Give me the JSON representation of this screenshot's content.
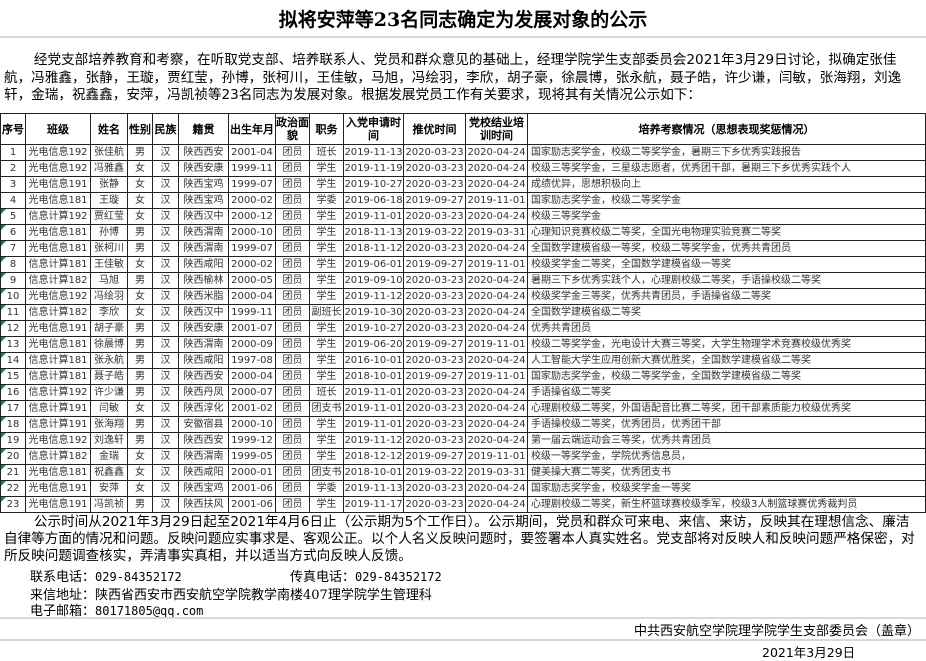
{
  "title": "拟将安萍等23名同志确定为发展对象的公示",
  "intro": "经党支部培养教育和考察，在听取党支部、培养联系人、党员和群众意见的基础上，经理学院学生支部委员会2021年3月29日讨论，拟确定张佳航，冯雅鑫，张静，王璇，贾红莹，孙博，张柯川，王佳敏，马旭，冯绘羽，李欣，胡子豪，徐晨博，张永航，聂子皓，许少谦，闫敏，张海翔，刘逸轩，金瑞，祝鑫鑫，安萍，冯凯祯等23名同志为发展对象。根据发展党员工作有关要求，现将其有关情况公示如下：",
  "table": {
    "headers": [
      "序号",
      "班级",
      "姓名",
      "性别",
      "民族",
      "籍贯",
      "出生年月",
      "政治面貌",
      "职务",
      "入党申请时间",
      "推优时间",
      "党校结业培训时间",
      "培养考察情况（思想表现奖惩情况）"
    ],
    "rows": [
      [
        "1",
        "光电信息192",
        "张佳航",
        "男",
        "汉",
        "陕西西安",
        "2001-04",
        "团员",
        "班长",
        "2019-11-13",
        "2020-03-23",
        "2020-04-24",
        "国家励志奖学金，校级二等奖学金，暑期三下乡优秀实践报告"
      ],
      [
        "2",
        "光电信息192",
        "冯雅鑫",
        "女",
        "汉",
        "陕西安康",
        "1999-11",
        "团员",
        "学生",
        "2019-11-19",
        "2020-03-23",
        "2020-04-24",
        "校级三等奖学金，三星级志愿者，优秀团干部，暑期三下乡优秀实践个人"
      ],
      [
        "3",
        "光电信息191",
        "张静",
        "女",
        "汉",
        "陕西宝鸡",
        "1999-07",
        "团员",
        "学生",
        "2019-10-27",
        "2020-03-23",
        "2020-04-24",
        "成绩优异，思想积极向上"
      ],
      [
        "4",
        "光电信息181",
        "王璇",
        "女",
        "汉",
        "陕西宝鸡",
        "2000-02",
        "团员",
        "学委",
        "2019-06-18",
        "2019-09-27",
        "2019-11-01",
        "国家励志奖学金，校级二等奖学金"
      ],
      [
        "5",
        "信息计算192",
        "贾红莹",
        "女",
        "汉",
        "陕西汉中",
        "2000-12",
        "团员",
        "学生",
        "2019-11-01",
        "2020-03-23",
        "2020-04-24",
        "校级三等奖学金"
      ],
      [
        "6",
        "光电信息181",
        "孙博",
        "男",
        "汉",
        "陕西渭南",
        "2000-10",
        "团员",
        "学生",
        "2018-11-13",
        "2019-03-22",
        "2019-03-31",
        "心理知识竞赛校级二等奖，全国光电物理实验竞赛二等奖"
      ],
      [
        "7",
        "光电信息181",
        "张柯川",
        "男",
        "汉",
        "陕西渭南",
        "1999-07",
        "团员",
        "学生",
        "2018-11-12",
        "2020-03-23",
        "2020-04-24",
        "全国数学建模省级一等奖，校级二等奖学金，优秀共青团员"
      ],
      [
        "8",
        "信息计算181",
        "王佳敏",
        "女",
        "汉",
        "陕西咸阳",
        "2000-02",
        "团员",
        "学生",
        "2019-06-01",
        "2019-09-27",
        "2019-11-01",
        "校级奖学金二等奖，全国数学建模省级一等奖"
      ],
      [
        "9",
        "信息计算182",
        "马旭",
        "男",
        "汉",
        "陕西榆林",
        "2000-05",
        "团员",
        "学生",
        "2019-09-10",
        "2020-03-23",
        "2020-04-24",
        "暑期三下乡优秀实践个人，心理剧校级二等奖，手语操校级二等奖"
      ],
      [
        "10",
        "光电信息192",
        "冯绘羽",
        "女",
        "汉",
        "陕西米脂",
        "2000-04",
        "团员",
        "学生",
        "2019-11-12",
        "2020-03-23",
        "2020-04-24",
        "校级奖学金三等奖，优秀共青团员，手语操省级二等奖"
      ],
      [
        "11",
        "信息计算182",
        "李欣",
        "女",
        "汉",
        "陕西汉中",
        "1999-11",
        "团员",
        "副班长",
        "2019-10-30",
        "2020-03-23",
        "2020-04-24",
        "全国数学建模省级二等奖"
      ],
      [
        "12",
        "光电信息191",
        "胡子豪",
        "男",
        "汉",
        "陕西安康",
        "2001-07",
        "团员",
        "学生",
        "2019-10-27",
        "2020-03-23",
        "2020-04-24",
        "优秀共青团员"
      ],
      [
        "13",
        "光电信息181",
        "徐晨博",
        "男",
        "汉",
        "陕西渭南",
        "2000-09",
        "团员",
        "学生",
        "2019-06-20",
        "2019-09-27",
        "2019-11-01",
        "校级二等奖学金，光电设计大赛三等奖，大学生物理学术竞赛校级优秀奖"
      ],
      [
        "14",
        "信息计算181",
        "张永航",
        "男",
        "汉",
        "陕西咸阳",
        "1997-08",
        "团员",
        "学生",
        "2016-10-01",
        "2020-03-23",
        "2020-04-24",
        "人工智能大学生应用创新大赛优胜奖，全国数学建模省级二等奖"
      ],
      [
        "15",
        "信息计算181",
        "聂子皓",
        "男",
        "汉",
        "陕西西安",
        "2000-04",
        "团员",
        "学生",
        "2018-10-01",
        "2019-09-27",
        "2019-11-01",
        "国家励志奖学金，校级二等奖学金，全国数学建模省级二等奖"
      ],
      [
        "16",
        "信息计算192",
        "许少谦",
        "男",
        "汉",
        "陕西丹凤",
        "2000-07",
        "团员",
        "班长",
        "2019-11-01",
        "2020-03-23",
        "2020-04-24",
        "手语操省级二等奖"
      ],
      [
        "17",
        "信息计算191",
        "闫敏",
        "女",
        "汉",
        "陕西淳化",
        "2001-02",
        "团员",
        "团支书",
        "2019-11-01",
        "2020-03-23",
        "2020-04-24",
        "心理剧校级二等奖，外国语配音比赛二等奖，团干部素质能力校级优秀奖"
      ],
      [
        "18",
        "信息计算191",
        "张海翔",
        "男",
        "汉",
        "安徽宿县",
        "2000-10",
        "团员",
        "学生",
        "2019-11-01",
        "2020-03-23",
        "2020-04-24",
        "手语操校级二等奖，优秀团员，优秀团干部"
      ],
      [
        "19",
        "光电信息192",
        "刘逸轩",
        "男",
        "汉",
        "陕西西安",
        "1999-12",
        "团员",
        "学生",
        "2019-11-12",
        "2020-03-23",
        "2020-04-24",
        "第一届云端运动会三等奖，优秀共青团员"
      ],
      [
        "20",
        "信息计算182",
        "金瑞",
        "女",
        "汉",
        "陕西渭南",
        "1999-05",
        "团员",
        "学生",
        "2018-12-12",
        "2019-09-27",
        "2019-11-01",
        "校级一等奖学金，学院优秀信息员，"
      ],
      [
        "21",
        "光电信息181",
        "祝鑫鑫",
        "女",
        "汉",
        "陕西咸阳",
        "2000-01",
        "团员",
        "团支书",
        "2018-10-01",
        "2019-03-22",
        "2019-03-31",
        "健美操大赛二等奖，优秀团支书"
      ],
      [
        "22",
        "光电信息191",
        "安萍",
        "女",
        "汉",
        "陕西宝鸡",
        "2001-06",
        "团员",
        "学委",
        "2019-11-13",
        "2020-03-23",
        "2020-04-24",
        "国家励志奖学金，校级奖学金一等奖"
      ],
      [
        "23",
        "光电信息191",
        "冯凯祯",
        "男",
        "汉",
        "陕西扶风",
        "2001-06",
        "团员",
        "学生",
        "2019-11-17",
        "2020-03-23",
        "2020-04-24",
        "心理剧校级二等奖，新生杯篮球赛校级季军，校级3人制篮球赛优秀裁判员"
      ]
    ]
  },
  "footer": {
    "notice": "公示时间从2021年3月29日起至2021年4月6日止（公示期为5个工作日）。公示期间，党员和群众可来电、来信、来访，反映其在理想信念、廉洁自律等方面的情况和问题。反映问题应实事求是、客观公正。以个人名义反映问题时，要签署本人真实姓名。党支部将对反映人和反映问题严格保密，对所反映问题调查核实，弄清事实真相，并以适当方式向反映人反馈。",
    "phone_label": "联系电话：",
    "phone": "029-84352172",
    "fax_label": "传真电话：",
    "fax": "029-84352172",
    "address_label": "来信地址：",
    "address": "陕西省西安市西安航空学院教学南楼407理学院学生管理科",
    "email_label": "电子邮箱：",
    "email": "80171805@qq.com",
    "organization": "中共西安航空学院理学院学生支部委员会（盖章）",
    "date": "2021年3月29日"
  },
  "colors": {
    "comment_marker": "#1a8a1a",
    "separator": "#d8d8d8"
  }
}
